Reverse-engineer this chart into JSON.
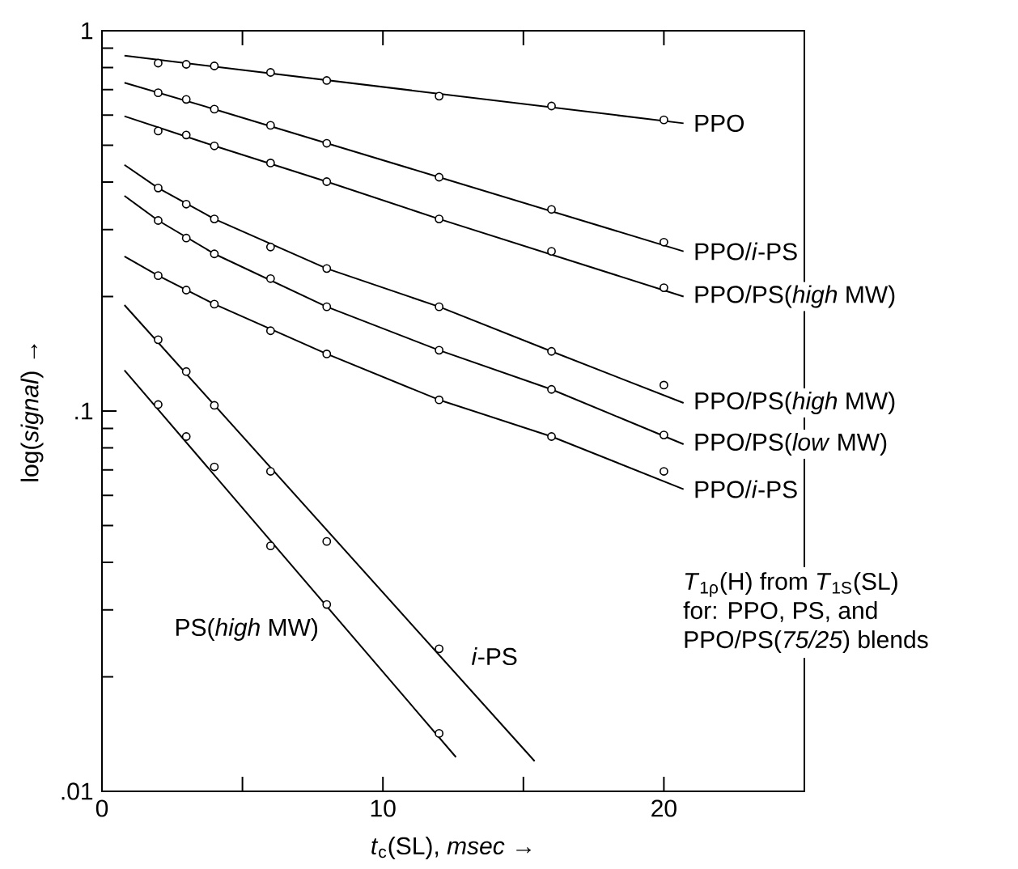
{
  "chart_data": {
    "type": "scatter",
    "xlabel": "*t*$_{c}$(SL), *msec* →",
    "ylabel": "log(*signal*) →",
    "xlim": [
      0,
      25
    ],
    "ylim": [
      0.01,
      1
    ],
    "log": "y",
    "xticks": [
      0,
      {
        "value": 5,
        "label": null
      },
      10,
      {
        "value": 15,
        "label": null
      },
      20
    ],
    "yticks": [
      {
        "value": 0.01,
        "label": ".01"
      },
      {
        "value": 0.1,
        "label": ".1"
      },
      {
        "value": 1,
        "label": "1"
      }
    ],
    "grid": false,
    "annotations": [
      "*T*$_{1ρ}$(H) from *T*$_{1S}$(SL)",
      "for: PPO, PS, and",
      "PPO/PS(*75/25*) blends"
    ],
    "series": [
      {
        "marker": "circle",
        "name": "PPO",
        "color": "#000000",
        "x": [
          2,
          3,
          4,
          6,
          8,
          12,
          16,
          20
        ],
        "values": [
          0.822,
          0.816,
          0.808,
          0.777,
          0.74,
          0.673,
          0.634,
          0.583
        ]
      },
      {
        "type": "line",
        "marker": "none",
        "color": "#000000",
        "x": [
          0.8,
          20.7
        ],
        "values": [
          0.86,
          0.571
        ]
      },
      {
        "marker": "circle",
        "name": "PPO/*i*-PS",
        "color": "#000000",
        "x": [
          2,
          3,
          4,
          6,
          8,
          12,
          16,
          20
        ],
        "values": [
          0.687,
          0.66,
          0.622,
          0.564,
          0.506,
          0.412,
          0.339,
          0.278
        ]
      },
      {
        "type": "line",
        "marker": "none",
        "color": "#000000",
        "x": [
          0.8,
          4,
          8,
          12,
          20.7
        ],
        "values": [
          0.73,
          0.622,
          0.506,
          0.412,
          0.263
        ]
      },
      {
        "marker": "circle",
        "name": "PPO/PS(*high* MW)",
        "color": "#000000",
        "x": [
          2,
          3,
          4,
          6,
          8,
          12,
          16,
          20
        ],
        "values": [
          0.545,
          0.532,
          0.498,
          0.449,
          0.401,
          0.32,
          0.263,
          0.211
        ]
      },
      {
        "type": "line",
        "marker": "none",
        "color": "#000000",
        "x": [
          0.8,
          4,
          8,
          12,
          20.7
        ],
        "values": [
          0.596,
          0.498,
          0.401,
          0.32,
          0.2
        ]
      },
      {
        "marker": "circle",
        "name": "PPO/PS(*high* MW)",
        "color": "#000000",
        "x": [
          2,
          3,
          4,
          6,
          8,
          12,
          16,
          20
        ],
        "values": [
          0.386,
          0.35,
          0.32,
          0.27,
          0.237,
          0.188,
          0.1435,
          0.117
        ]
      },
      {
        "type": "line",
        "marker": "none",
        "color": "#000000",
        "x": [
          0.8,
          2,
          4,
          8,
          12,
          16,
          20.7
        ],
        "values": [
          0.444,
          0.386,
          0.32,
          0.237,
          0.188,
          0.1435,
          0.105
        ]
      },
      {
        "marker": "circle",
        "name": "PPO/PS(*low* MW)",
        "color": "#000000",
        "x": [
          2,
          3,
          4,
          6,
          8,
          12,
          16,
          20
        ],
        "values": [
          0.317,
          0.285,
          0.259,
          0.223,
          0.188,
          0.1445,
          0.114,
          0.0865
        ]
      },
      {
        "type": "line",
        "marker": "none",
        "color": "#000000",
        "x": [
          0.8,
          2,
          4,
          8,
          12,
          16,
          20.7
        ],
        "values": [
          0.368,
          0.317,
          0.259,
          0.188,
          0.1445,
          0.114,
          0.0818
        ]
      },
      {
        "marker": "circle",
        "name": "PPO/*i*-PS",
        "color": "#000000",
        "x": [
          2,
          3,
          4,
          6,
          8,
          12,
          16,
          20
        ],
        "values": [
          0.227,
          0.208,
          0.191,
          0.1626,
          0.1413,
          0.107,
          0.0857,
          0.0694
        ]
      },
      {
        "type": "line",
        "marker": "none",
        "color": "#000000",
        "x": [
          0.8,
          2,
          4,
          8,
          12,
          16,
          20.7
        ],
        "values": [
          0.255,
          0.227,
          0.191,
          0.1413,
          0.107,
          0.0857,
          0.0623
        ]
      },
      {
        "marker": "circle",
        "name": "*i*-PS",
        "color": "#000000",
        "x": [
          2,
          3,
          4,
          6,
          8,
          12
        ],
        "values": [
          0.154,
          0.127,
          0.1035,
          0.0694,
          0.0454,
          0.0237
        ]
      },
      {
        "type": "line",
        "marker": "none",
        "color": "#000000",
        "x": [
          0.8,
          15.4
        ],
        "values": [
          0.19,
          0.012
        ]
      },
      {
        "marker": "circle",
        "name": "PS(*high* MW)",
        "color": "#000000",
        "x": [
          2,
          3,
          4,
          6,
          8,
          12
        ],
        "values": [
          0.104,
          0.0857,
          0.0713,
          0.0442,
          0.031,
          0.0142
        ]
      },
      {
        "type": "line",
        "marker": "none",
        "color": "#000000",
        "x": [
          0.8,
          12.6
        ],
        "values": [
          0.128,
          0.0123
        ]
      }
    ]
  }
}
